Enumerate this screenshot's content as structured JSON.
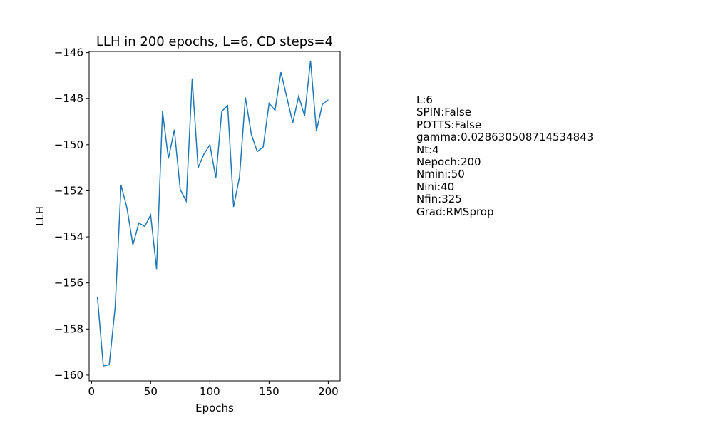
{
  "chart_data": {
    "type": "line",
    "title": "LLH in 200 epochs, L=6, CD steps=4",
    "xlabel": "Epochs",
    "ylabel": "LLH",
    "xlim": [
      -2,
      210
    ],
    "ylim": [
      -160.25,
      -145.95
    ],
    "xticks": [
      0,
      50,
      100,
      150,
      200
    ],
    "yticks": [
      -160,
      -158,
      -156,
      -154,
      -152,
      -150,
      -148,
      -146
    ],
    "grid": false,
    "line_color": "#1f77b4",
    "series": [
      {
        "x": [
          5,
          10,
          15,
          20,
          25,
          30,
          35,
          40,
          45,
          50,
          55,
          60,
          65,
          70,
          75,
          80,
          85,
          90,
          95,
          100,
          105,
          110,
          115,
          120,
          125,
          130,
          135,
          140,
          145,
          150,
          155,
          160,
          165,
          170,
          175,
          180,
          185,
          190,
          195,
          200
        ],
        "y": [
          -156.6,
          -159.6,
          -159.55,
          -157.05,
          -151.75,
          -152.75,
          -154.35,
          -153.4,
          -153.55,
          -153.05,
          -155.4,
          -148.55,
          -150.6,
          -149.35,
          -151.95,
          -152.45,
          -147.15,
          -151.0,
          -150.4,
          -150.0,
          -151.45,
          -148.55,
          -148.3,
          -152.7,
          -151.4,
          -147.95,
          -149.55,
          -150.3,
          -150.1,
          -148.2,
          -148.5,
          -146.85,
          -147.95,
          -149.05,
          -147.9,
          -148.75,
          -146.35,
          -149.4,
          -148.25,
          -148.05
        ]
      }
    ]
  },
  "params": [
    "L:6",
    "SPIN:False",
    "POTTS:False",
    "gamma:0.028630508714534843",
    "Nt:4",
    "Nepoch:200",
    "Nmini:50",
    "Nini:40",
    "Nfin:325",
    "Grad:RMSprop"
  ]
}
